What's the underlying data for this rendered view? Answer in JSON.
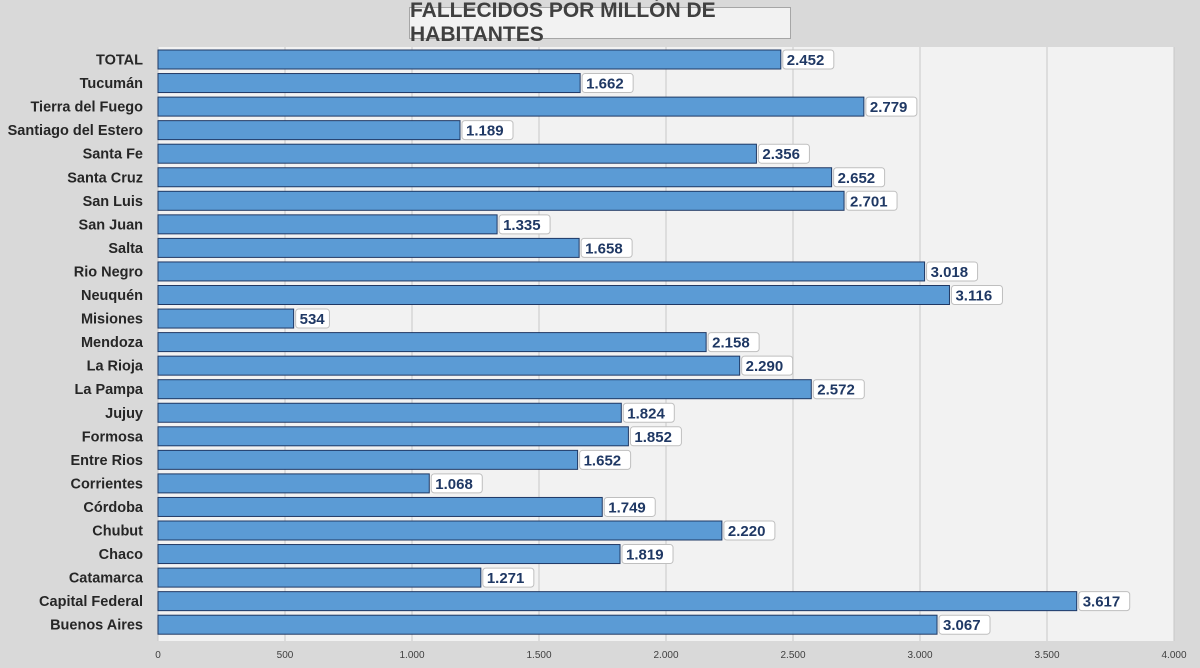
{
  "chart_data": {
    "type": "bar",
    "orientation": "horizontal",
    "title": "FALLECIDOS POR MILLÓN DE HABITANTES",
    "categories": [
      "TOTAL",
      "Tucumán",
      "Tierra del Fuego",
      "Santiago del Estero",
      "Santa Fe",
      "Santa Cruz",
      "San Luis",
      "San Juan",
      "Salta",
      "Rio Negro",
      "Neuquén",
      "Misiones",
      "Mendoza",
      "La Rioja",
      "La Pampa",
      "Jujuy",
      "Formosa",
      "Entre Rios",
      "Corrientes",
      "Córdoba",
      "Chubut",
      "Chaco",
      "Catamarca",
      "Capital Federal",
      "Buenos Aires"
    ],
    "values": [
      2452,
      1662,
      2779,
      1189,
      2356,
      2652,
      2701,
      1335,
      1658,
      3018,
      3116,
      534,
      2158,
      2290,
      2572,
      1824,
      1852,
      1652,
      1068,
      1749,
      2220,
      1819,
      1271,
      3617,
      3067
    ],
    "value_labels": [
      "2.452",
      "1.662",
      "2.779",
      "1.189",
      "2.356",
      "2.652",
      "2.701",
      "1.335",
      "1.658",
      "3.018",
      "3.116",
      "534",
      "2.158",
      "2.290",
      "2.572",
      "1.824",
      "1.852",
      "1.652",
      "1.068",
      "1.749",
      "2.220",
      "1.819",
      "1.271",
      "3.617",
      "3.067"
    ],
    "xlim": [
      0,
      4000
    ],
    "xticks": [
      0,
      500,
      1000,
      1500,
      2000,
      2500,
      3000,
      3500,
      4000
    ],
    "xtick_labels": [
      "0",
      "500",
      "1.000",
      "1.500",
      "2.000",
      "2.500",
      "3.000",
      "3.500",
      "4.000"
    ],
    "grid": true,
    "colors": {
      "bar_fill": "#5b9bd5",
      "bar_border": "#1f3864",
      "label_text": "#1f3864",
      "plot_bg": "#f2f2f2",
      "page_bg": "#d9d9d9",
      "grid": "#c8c8c8"
    }
  }
}
